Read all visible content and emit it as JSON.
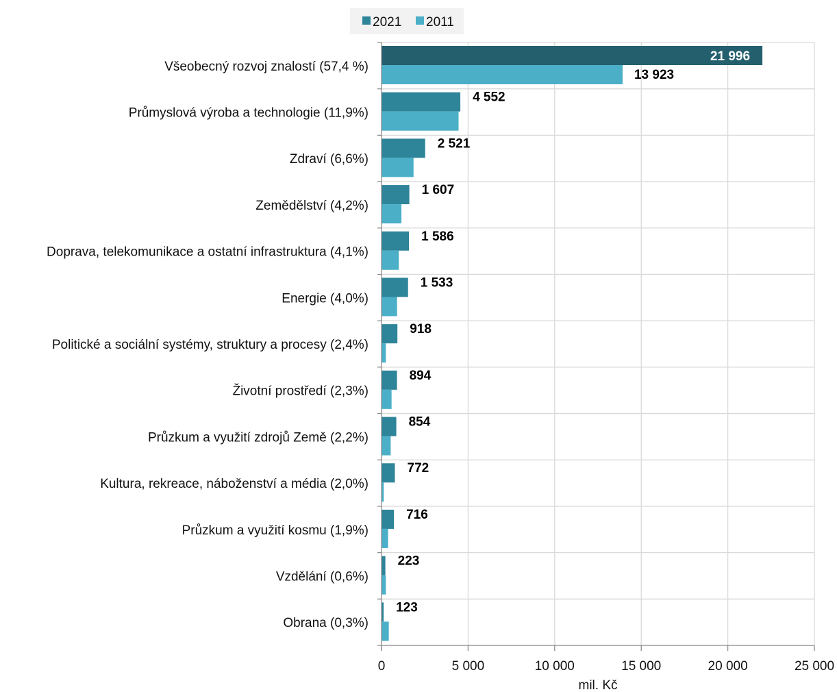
{
  "chart_data": {
    "type": "bar",
    "orientation": "horizontal",
    "categories": [
      "Všeobecný rozvoj znalostí (57,4 %)",
      "Průmyslová výroba a technologie (11,9%)",
      "Zdraví (6,6%)",
      "Zemědělství (4,2%)",
      "Doprava, telekomunikace a ostatní infrastruktura (4,1%)",
      "Energie (4,0%)",
      "Politické a sociální systémy, struktury a procesy (2,4%)",
      "Životní prostředí (2,3%)",
      "Průzkum a využití zdrojů Země (2,2%)",
      "Kultura, rekreace, náboženství a média (2,0%)",
      "Průzkum a využití kosmu (1,9%)",
      "Vzdělání (0,6%)",
      "Obrana (0,3%)"
    ],
    "series": [
      {
        "name": "2021",
        "color": "#2E8499",
        "highlight_color": "#245F6E",
        "values": [
          21996,
          4552,
          2521,
          1607,
          1586,
          1533,
          918,
          894,
          854,
          772,
          716,
          223,
          123
        ],
        "value_labels": [
          "21 996",
          "4 552",
          "2 521",
          "1 607",
          "1 586",
          "1 533",
          "918",
          "894",
          "854",
          "772",
          "716",
          "223",
          "123"
        ]
      },
      {
        "name": "2011",
        "color": "#4BAFC8",
        "values": [
          13923,
          4450,
          1850,
          1150,
          1000,
          900,
          250,
          580,
          530,
          130,
          380,
          250,
          420
        ],
        "value_labels": [
          "13 923",
          "",
          "",
          "",
          "",
          "",
          "",
          "",
          "",
          "",
          "",
          "",
          ""
        ]
      }
    ],
    "xlim": [
      0,
      25000
    ],
    "x_ticks": [
      0,
      5000,
      10000,
      15000,
      20000,
      25000
    ],
    "x_tick_labels": [
      "0",
      "5 000",
      "10 000",
      "15 000",
      "20 000",
      "25 000"
    ],
    "xlabel": "mil. Kč",
    "ylabel": "",
    "title": "",
    "grid": true,
    "legend": {
      "position": "top",
      "entries": [
        "2021",
        "2011"
      ]
    }
  }
}
